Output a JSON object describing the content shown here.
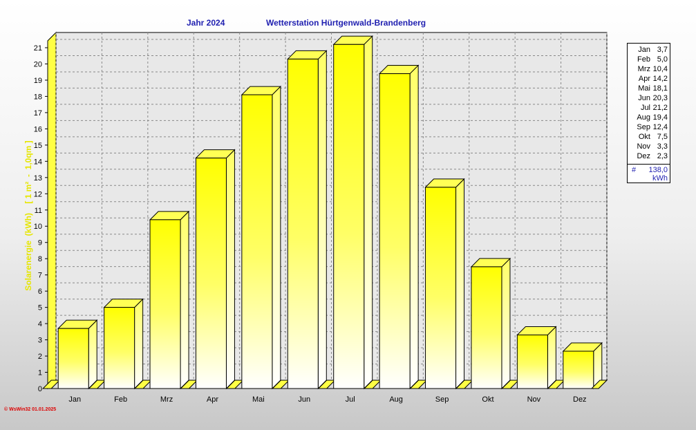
{
  "header": {
    "year_label": "Jahr  2024",
    "station_label": "Wetterstation Hürtgenwald-Brandenberg"
  },
  "legend": {
    "entries": [
      {
        "month": "Jan",
        "value": "3,7"
      },
      {
        "month": "Feb",
        "value": "5,0"
      },
      {
        "month": "Mrz",
        "value": "10,4"
      },
      {
        "month": "Apr",
        "value": "14,2"
      },
      {
        "month": "Mai",
        "value": "18,1"
      },
      {
        "month": "Jun",
        "value": "20,3"
      },
      {
        "month": "Jul",
        "value": "21,2"
      },
      {
        "month": "Aug",
        "value": "19,4"
      },
      {
        "month": "Sep",
        "value": "12,4"
      },
      {
        "month": "Okt",
        "value": "7,5"
      },
      {
        "month": "Nov",
        "value": "3,3"
      },
      {
        "month": "Dez",
        "value": "2,3"
      }
    ],
    "total_symbol": "#",
    "total": "138,0",
    "unit": "kWh"
  },
  "footer": {
    "text": "© WsWin32  01.01.2025"
  },
  "chart_data": {
    "type": "bar",
    "categories": [
      "Jan",
      "Feb",
      "Mrz",
      "Apr",
      "Mai",
      "Jun",
      "Jul",
      "Aug",
      "Sep",
      "Okt",
      "Nov",
      "Dez"
    ],
    "values": [
      3.7,
      5.0,
      10.4,
      14.2,
      18.1,
      20.3,
      21.2,
      19.4,
      12.4,
      7.5,
      3.3,
      2.3
    ],
    "title": "Wetterstation Hürtgenwald-Brandenberg",
    "ylabel": "Solarenergie  (kWh)    [ 1 m²  -  1,0qm ]",
    "xlabel": "",
    "ylim": [
      0,
      21
    ],
    "yticks": [
      0,
      1,
      2,
      3,
      4,
      5,
      6,
      7,
      8,
      9,
      10,
      11,
      12,
      13,
      14,
      15,
      16,
      17,
      18,
      19,
      20,
      21
    ],
    "grid": true,
    "legend_position": "right",
    "colors": {
      "bar_top": "#ffff00",
      "bar_bottom": "#ffffff",
      "title": "#1f1fb0",
      "ylabel": "#e6e600"
    }
  }
}
